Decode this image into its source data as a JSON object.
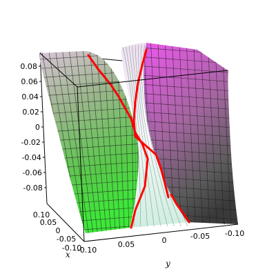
{
  "chart_data": {
    "type": "surface3d",
    "axes": {
      "x": {
        "label": "x",
        "range": [
          -0.1,
          0.1
        ],
        "tick_labels": [
          "0.10",
          "0.05",
          "0",
          "-0.05",
          "-0.10"
        ]
      },
      "y": {
        "label": "y",
        "range": [
          -0.1,
          0.1
        ],
        "tick_labels": [
          "0.05",
          "0",
          "-0.05",
          "-0.10"
        ]
      },
      "z": {
        "label": "",
        "range": [
          -0.09,
          0.09
        ],
        "tick_labels": [
          "0.08",
          "0.06",
          "0.04",
          "0.02",
          "0",
          "-0.02",
          "-0.04",
          "-0.06",
          "-0.08"
        ]
      }
    },
    "surfaces": [
      {
        "name": "",
        "color_top": "#e7c8e8",
        "color_bottom": "#3ed33a"
      },
      {
        "name": "",
        "color_top": "#e85ce8",
        "color_bottom": "#3a3a3a"
      }
    ],
    "curve_color": "#ff0000",
    "box": true
  }
}
